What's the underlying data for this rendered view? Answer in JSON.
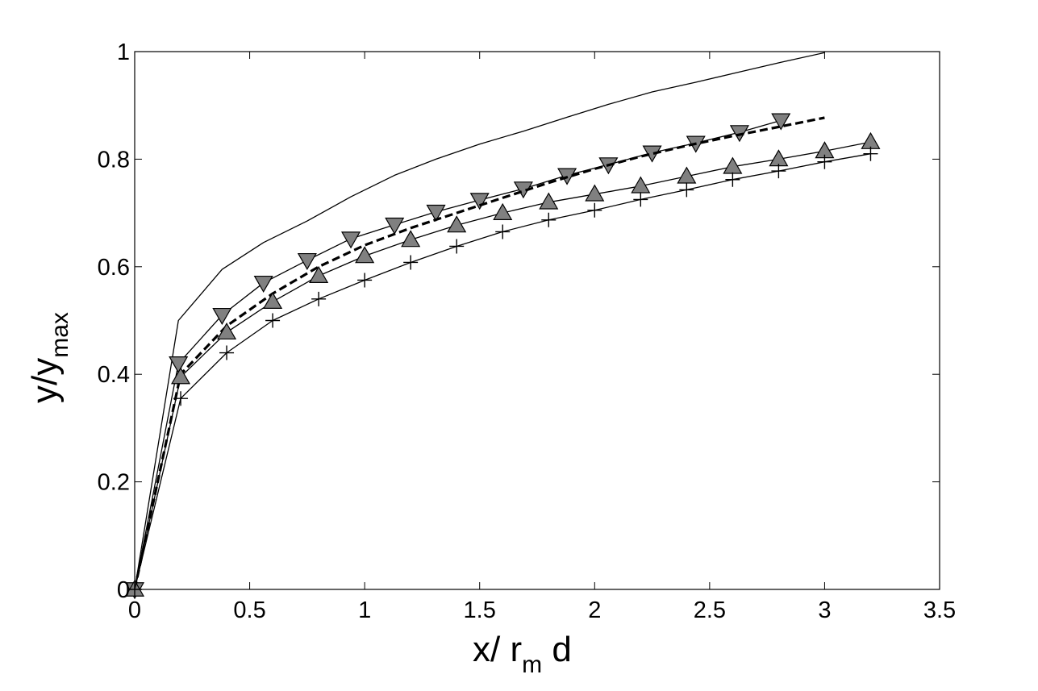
{
  "chart_data": {
    "type": "line",
    "xlabel": {
      "main": "x/ r",
      "sub": "m",
      "after": " d"
    },
    "ylabel": {
      "main": "y/y",
      "sub": "max"
    },
    "xlim": [
      0,
      3.5
    ],
    "ylim": [
      0,
      1
    ],
    "xticks": [
      "0",
      "0.5",
      "1",
      "1.5",
      "2",
      "2.5",
      "3",
      "3.5"
    ],
    "yticks": [
      "0",
      "0.2",
      "0.4",
      "0.6",
      "0.8",
      "1"
    ],
    "grid": false,
    "colors": {
      "marker_fill": "#808080",
      "line": "#000000",
      "background": "#ffffff"
    },
    "series": [
      {
        "style": "solid-thin",
        "marker": "none",
        "x": [
          0,
          0.19,
          0.38,
          0.56,
          0.75,
          0.94,
          1.13,
          1.31,
          1.5,
          1.69,
          1.88,
          2.06,
          2.25,
          2.44,
          2.63,
          2.81,
          3.0
        ],
        "y": [
          0,
          0.5,
          0.595,
          0.645,
          0.685,
          0.73,
          0.77,
          0.8,
          0.828,
          0.852,
          0.878,
          0.902,
          0.925,
          0.943,
          0.962,
          0.98,
          0.998
        ]
      },
      {
        "style": "solid-thin",
        "marker": "triangle-down",
        "x": [
          0,
          0.19,
          0.38,
          0.56,
          0.75,
          0.94,
          1.13,
          1.31,
          1.5,
          1.69,
          1.88,
          2.06,
          2.25,
          2.44,
          2.63,
          2.81
        ],
        "y": [
          0,
          0.42,
          0.51,
          0.57,
          0.612,
          0.652,
          0.678,
          0.702,
          0.724,
          0.745,
          0.77,
          0.79,
          0.812,
          0.83,
          0.85,
          0.872
        ]
      },
      {
        "style": "dashed-bold",
        "marker": "none",
        "x": [
          0,
          0.2,
          0.4,
          0.6,
          0.8,
          1.0,
          1.2,
          1.4,
          1.6,
          1.8,
          2.0,
          2.2,
          2.4,
          2.6,
          2.8,
          3.0
        ],
        "y": [
          0,
          0.4,
          0.49,
          0.55,
          0.6,
          0.64,
          0.672,
          0.7,
          0.728,
          0.756,
          0.782,
          0.805,
          0.825,
          0.843,
          0.86,
          0.877
        ]
      },
      {
        "style": "solid-thin",
        "marker": "triangle-up",
        "x": [
          0,
          0.2,
          0.4,
          0.6,
          0.8,
          1.0,
          1.2,
          1.4,
          1.6,
          1.8,
          2.0,
          2.2,
          2.4,
          2.6,
          2.8,
          3.0,
          3.2
        ],
        "y": [
          0,
          0.395,
          0.478,
          0.535,
          0.583,
          0.62,
          0.65,
          0.677,
          0.7,
          0.72,
          0.735,
          0.75,
          0.768,
          0.786,
          0.8,
          0.815,
          0.832
        ]
      },
      {
        "style": "solid-thin",
        "marker": "plus",
        "x": [
          0,
          0.2,
          0.4,
          0.6,
          0.8,
          1.0,
          1.2,
          1.4,
          1.6,
          1.8,
          2.0,
          2.2,
          2.4,
          2.6,
          2.8,
          3.0,
          3.2
        ],
        "y": [
          0,
          0.355,
          0.44,
          0.5,
          0.54,
          0.575,
          0.608,
          0.638,
          0.665,
          0.687,
          0.705,
          0.725,
          0.743,
          0.762,
          0.778,
          0.795,
          0.81
        ]
      }
    ]
  }
}
